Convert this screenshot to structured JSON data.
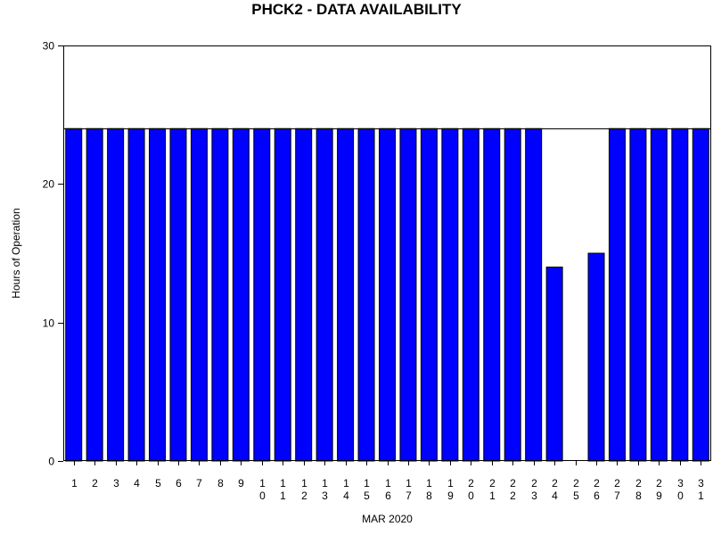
{
  "chart_data": {
    "type": "bar",
    "title": "PHCK2 - DATA AVAILABILITY",
    "xlabel": "MAR 2020",
    "ylabel": "Hours of Operation",
    "categories": [
      "1",
      "2",
      "3",
      "4",
      "5",
      "6",
      "7",
      "8",
      "9",
      "10",
      "11",
      "12",
      "13",
      "14",
      "15",
      "16",
      "17",
      "18",
      "19",
      "20",
      "21",
      "22",
      "23",
      "24",
      "25",
      "26",
      "27",
      "28",
      "29",
      "30",
      "31"
    ],
    "values": [
      24,
      24,
      24,
      24,
      24,
      24,
      24,
      24,
      24,
      24,
      24,
      24,
      24,
      24,
      24,
      24,
      24,
      24,
      24,
      24,
      24,
      24,
      24,
      14,
      0,
      15,
      24,
      24,
      24,
      24,
      24
    ],
    "ylim": [
      0,
      30
    ],
    "yticks": [
      0,
      10,
      20,
      30
    ],
    "reference_line": 24,
    "grid": false,
    "bar_color": "#0000ff",
    "bar_edge_color": "#000000"
  }
}
